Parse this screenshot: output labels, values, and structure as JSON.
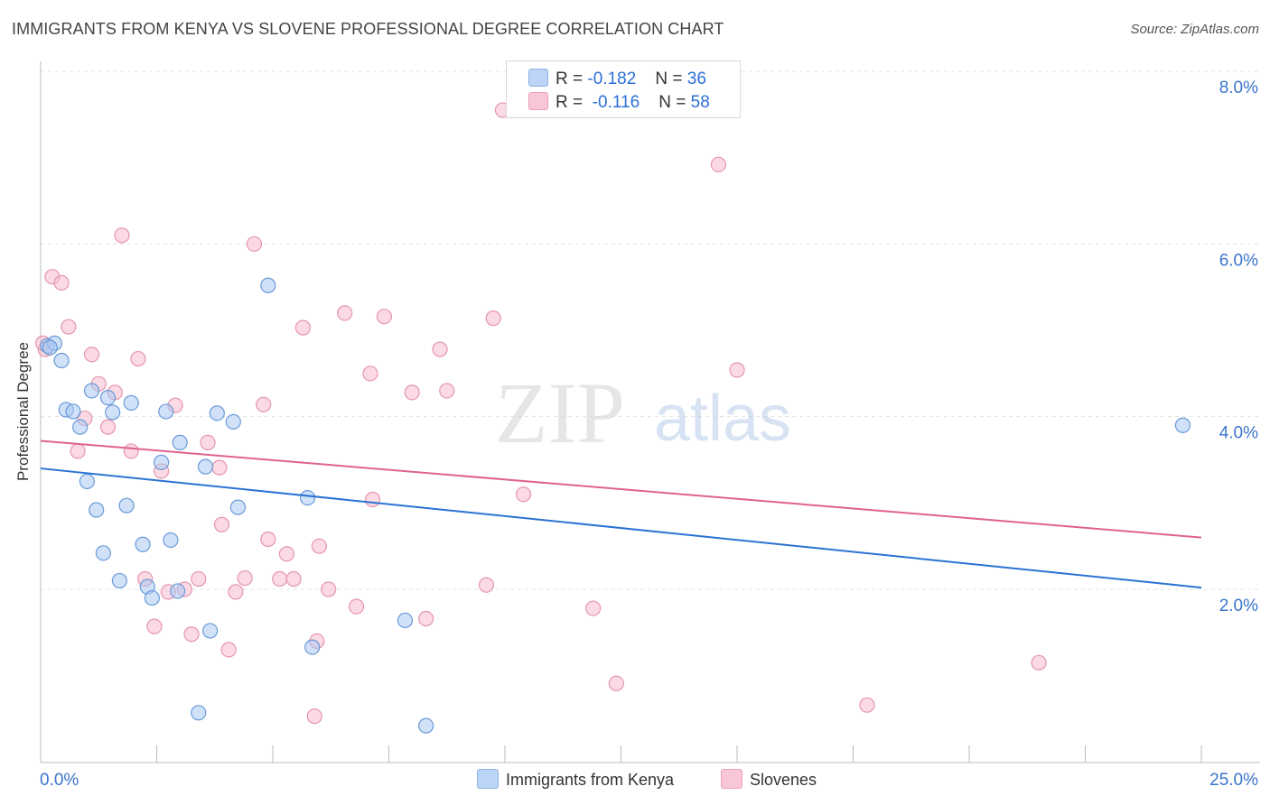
{
  "title": "IMMIGRANTS FROM KENYA VS SLOVENE PROFESSIONAL DEGREE CORRELATION CHART",
  "source": "Source: ZipAtlas.com",
  "watermark": {
    "zip": "ZIP",
    "atlas": "atlas"
  },
  "legend": {
    "rows": [
      {
        "r_label": "R =",
        "r_value": "-0.182",
        "n_label": "N =",
        "n_value": "36"
      },
      {
        "r_label": "R =",
        "r_value": "-0.116",
        "n_label": "N =",
        "n_value": "58"
      }
    ]
  },
  "bottom_legend": {
    "kenya": "Immigrants from Kenya",
    "slovenes": "Slovenes"
  },
  "colors": {
    "kenya_fill": "#a9c8f2",
    "kenya_stroke": "#6a9ad8",
    "kenya_line": "#2b72d4",
    "slovene_fill": "#f8bccd",
    "slovene_stroke": "#e596ae",
    "slovene_line": "#e0628f",
    "axis_text": "#3a74cc",
    "grid": "#e3e3e3"
  },
  "chart_data": {
    "type": "scatter",
    "title": "IMMIGRANTS FROM KENYA VS SLOVENE PROFESSIONAL DEGREE CORRELATION CHART",
    "xlabel": "",
    "ylabel": "Professional Degree",
    "xlim": [
      0,
      25
    ],
    "ylim": [
      0,
      8.3
    ],
    "x_tick_labels": [
      "0.0%",
      "25.0%"
    ],
    "y_ticks": [
      2,
      4,
      6,
      8
    ],
    "y_tick_labels": [
      "2.0%",
      "4.0%",
      "6.0%",
      "8.0%"
    ],
    "grid": true,
    "series": [
      {
        "name": "Immigrants from Kenya",
        "R": -0.182,
        "N": 36,
        "trend": {
          "x": [
            0,
            25
          ],
          "y": [
            3.4,
            2.02
          ]
        },
        "points": [
          {
            "x": 0.15,
            "y": 4.82
          },
          {
            "x": 0.3,
            "y": 4.85
          },
          {
            "x": 0.45,
            "y": 4.65
          },
          {
            "x": 0.55,
            "y": 4.08
          },
          {
            "x": 0.7,
            "y": 4.06
          },
          {
            "x": 0.85,
            "y": 3.88
          },
          {
            "x": 1.0,
            "y": 3.25
          },
          {
            "x": 1.1,
            "y": 4.3
          },
          {
            "x": 1.2,
            "y": 2.92
          },
          {
            "x": 1.35,
            "y": 2.42
          },
          {
            "x": 1.45,
            "y": 4.22
          },
          {
            "x": 1.55,
            "y": 4.05
          },
          {
            "x": 1.7,
            "y": 2.1
          },
          {
            "x": 1.85,
            "y": 2.97
          },
          {
            "x": 1.95,
            "y": 4.16
          },
          {
            "x": 2.2,
            "y": 2.52
          },
          {
            "x": 2.3,
            "y": 2.03
          },
          {
            "x": 2.4,
            "y": 1.9
          },
          {
            "x": 2.6,
            "y": 3.47
          },
          {
            "x": 2.7,
            "y": 4.06
          },
          {
            "x": 2.8,
            "y": 2.57
          },
          {
            "x": 2.95,
            "y": 1.98
          },
          {
            "x": 3.0,
            "y": 3.7
          },
          {
            "x": 3.4,
            "y": 0.57
          },
          {
            "x": 3.55,
            "y": 3.42
          },
          {
            "x": 3.65,
            "y": 1.52
          },
          {
            "x": 3.8,
            "y": 4.04
          },
          {
            "x": 4.15,
            "y": 3.94
          },
          {
            "x": 4.25,
            "y": 2.95
          },
          {
            "x": 4.9,
            "y": 5.52
          },
          {
            "x": 5.75,
            "y": 3.06
          },
          {
            "x": 5.85,
            "y": 1.33
          },
          {
            "x": 7.85,
            "y": 1.64
          },
          {
            "x": 8.3,
            "y": 0.42
          },
          {
            "x": 24.6,
            "y": 3.9
          },
          {
            "x": 0.2,
            "y": 4.8
          }
        ]
      },
      {
        "name": "Slovenes",
        "R": -0.116,
        "N": 58,
        "trend": {
          "x": [
            0,
            25
          ],
          "y": [
            3.72,
            2.6
          ]
        },
        "points": [
          {
            "x": 0.1,
            "y": 4.78
          },
          {
            "x": 0.25,
            "y": 5.62
          },
          {
            "x": 0.45,
            "y": 5.55
          },
          {
            "x": 0.6,
            "y": 5.04
          },
          {
            "x": 0.8,
            "y": 3.6
          },
          {
            "x": 0.95,
            "y": 3.98
          },
          {
            "x": 1.1,
            "y": 4.72
          },
          {
            "x": 1.25,
            "y": 4.38
          },
          {
            "x": 1.45,
            "y": 3.88
          },
          {
            "x": 1.6,
            "y": 4.28
          },
          {
            "x": 1.75,
            "y": 6.1
          },
          {
            "x": 1.95,
            "y": 3.6
          },
          {
            "x": 2.1,
            "y": 4.67
          },
          {
            "x": 2.25,
            "y": 2.12
          },
          {
            "x": 2.45,
            "y": 1.57
          },
          {
            "x": 2.6,
            "y": 3.37
          },
          {
            "x": 2.75,
            "y": 1.97
          },
          {
            "x": 2.9,
            "y": 4.13
          },
          {
            "x": 3.1,
            "y": 2.0
          },
          {
            "x": 3.25,
            "y": 1.48
          },
          {
            "x": 3.4,
            "y": 2.12
          },
          {
            "x": 3.6,
            "y": 3.7
          },
          {
            "x": 3.85,
            "y": 3.41
          },
          {
            "x": 3.9,
            "y": 2.75
          },
          {
            "x": 4.05,
            "y": 1.3
          },
          {
            "x": 4.2,
            "y": 1.97
          },
          {
            "x": 4.4,
            "y": 2.13
          },
          {
            "x": 4.6,
            "y": 6.0
          },
          {
            "x": 4.8,
            "y": 4.14
          },
          {
            "x": 4.9,
            "y": 2.58
          },
          {
            "x": 5.15,
            "y": 2.12
          },
          {
            "x": 5.3,
            "y": 2.41
          },
          {
            "x": 5.45,
            "y": 2.12
          },
          {
            "x": 5.65,
            "y": 5.03
          },
          {
            "x": 5.9,
            "y": 0.53
          },
          {
            "x": 5.95,
            "y": 1.4
          },
          {
            "x": 6.0,
            "y": 2.5
          },
          {
            "x": 6.2,
            "y": 2.0
          },
          {
            "x": 6.55,
            "y": 5.2
          },
          {
            "x": 6.8,
            "y": 1.8
          },
          {
            "x": 7.1,
            "y": 4.5
          },
          {
            "x": 7.15,
            "y": 3.04
          },
          {
            "x": 7.4,
            "y": 5.16
          },
          {
            "x": 8.0,
            "y": 4.28
          },
          {
            "x": 8.3,
            "y": 1.66
          },
          {
            "x": 8.6,
            "y": 4.78
          },
          {
            "x": 8.75,
            "y": 4.3
          },
          {
            "x": 9.6,
            "y": 2.05
          },
          {
            "x": 9.75,
            "y": 5.14
          },
          {
            "x": 9.95,
            "y": 7.55
          },
          {
            "x": 10.4,
            "y": 3.1
          },
          {
            "x": 11.9,
            "y": 1.78
          },
          {
            "x": 12.4,
            "y": 0.91
          },
          {
            "x": 14.6,
            "y": 6.92
          },
          {
            "x": 15.0,
            "y": 4.54
          },
          {
            "x": 17.8,
            "y": 0.66
          },
          {
            "x": 21.5,
            "y": 1.15
          },
          {
            "x": 0.05,
            "y": 4.85
          }
        ]
      }
    ]
  }
}
